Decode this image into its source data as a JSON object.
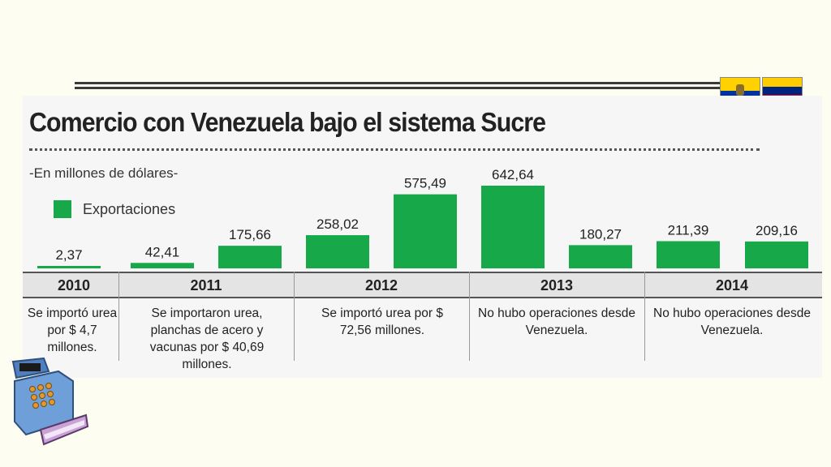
{
  "title": "Comercio con Venezuela bajo el sistema Sucre",
  "subtitle": "-En millones de dólares-",
  "legend": {
    "label": "Exportaciones",
    "color": "#17a84a"
  },
  "flags": [
    "ecuador-flag",
    "venezuela-flag"
  ],
  "icons": [
    "cash-register-icon"
  ],
  "chart_data": {
    "type": "bar",
    "series": [
      {
        "name": "Exportaciones",
        "points": [
          {
            "year": "2010",
            "value": 2.37,
            "label": "2,37"
          },
          {
            "year": "2011",
            "value": 42.41,
            "label": "42,41"
          },
          {
            "year": "2011",
            "value": 175.66,
            "label": "175,66"
          },
          {
            "year": "2012",
            "value": 258.02,
            "label": "258,02"
          },
          {
            "year": "2012",
            "value": 575.49,
            "label": "575,49"
          },
          {
            "year": "2013",
            "value": 642.64,
            "label": "642,64"
          },
          {
            "year": "2013",
            "value": 180.27,
            "label": "180,27"
          },
          {
            "year": "2014",
            "value": 211.39,
            "label": "211,39"
          },
          {
            "year": "2014",
            "value": 209.16,
            "label": "209,16"
          }
        ]
      }
    ],
    "years": [
      "2010",
      "2011",
      "2012",
      "2013",
      "2014"
    ],
    "notes": [
      "Se importó urea por $ 4,7 millones.",
      "Se importaron urea, planchas de acero y vacunas por $ 40,69 millones.",
      "Se importó urea por $ 72,56 millones.",
      "No hubo operaciones desde Venezuela.",
      "No hubo operaciones desde Venezuela."
    ],
    "colors": {
      "bar": "#17a84a"
    }
  }
}
